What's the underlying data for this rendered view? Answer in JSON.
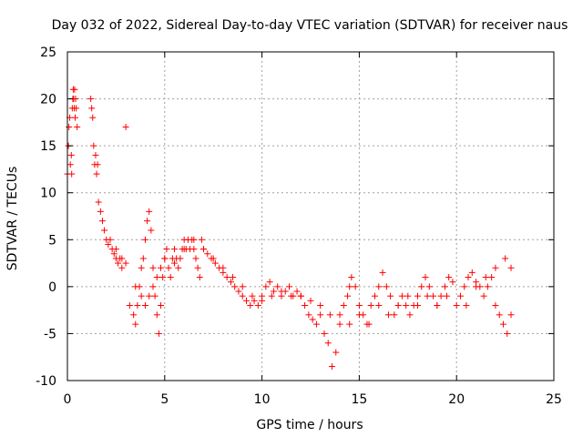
{
  "chart_data": {
    "type": "scatter",
    "title": "Day 032 of 2022, Sidereal Day-to-day VTEC variation (SDTVAR) for receiver naus",
    "xlabel": "GPS time / hours",
    "ylabel": "SDTVAR / TECUs",
    "xlim": [
      0,
      25
    ],
    "ylim": [
      -10,
      25
    ],
    "xticks": [
      0,
      5,
      10,
      15,
      20,
      25
    ],
    "yticks": [
      -10,
      -5,
      0,
      5,
      10,
      15,
      20,
      25
    ],
    "xtick_labels": [
      "0",
      "5",
      "10",
      "15",
      "20",
      "25"
    ],
    "ytick_labels": [
      "-10",
      "-5",
      "0",
      "5",
      "10",
      "15",
      "20",
      "25"
    ],
    "grid": true,
    "marker": "plus",
    "color": "#ff0000",
    "series": [
      {
        "name": "SDTVAR",
        "x": [
          0.0,
          0.05,
          0.08,
          0.12,
          0.15,
          0.2,
          0.22,
          0.25,
          0.28,
          0.3,
          0.32,
          0.35,
          0.37,
          0.4,
          0.42,
          0.45,
          0.5,
          1.2,
          1.25,
          1.3,
          1.35,
          1.4,
          1.45,
          1.5,
          1.55,
          1.6,
          1.7,
          1.8,
          1.9,
          2.0,
          2.1,
          2.2,
          2.3,
          2.4,
          2.5,
          2.6,
          2.7,
          2.8,
          3.0,
          3.2,
          3.4,
          3.5,
          3.6,
          3.7,
          3.8,
          3.9,
          4.0,
          4.1,
          4.2,
          4.3,
          4.4,
          4.5,
          4.6,
          4.7,
          4.8,
          4.9,
          5.0,
          5.1,
          5.2,
          5.3,
          5.4,
          5.5,
          5.6,
          5.7,
          5.8,
          5.9,
          6.0,
          6.1,
          6.2,
          6.3,
          6.4,
          6.5,
          6.6,
          6.7,
          6.8,
          6.9,
          7.0,
          7.2,
          7.4,
          7.6,
          7.8,
          8.0,
          8.2,
          8.4,
          8.6,
          8.8,
          9.0,
          9.2,
          9.4,
          9.6,
          9.8,
          10.0,
          10.2,
          10.4,
          10.6,
          10.8,
          11.0,
          11.2,
          11.4,
          11.6,
          11.8,
          12.0,
          12.2,
          12.4,
          12.6,
          12.8,
          13.0,
          13.2,
          13.4,
          13.6,
          13.8,
          14.0,
          14.2,
          14.4,
          14.5,
          14.6,
          14.8,
          15.0,
          15.2,
          15.4,
          15.6,
          15.8,
          16.0,
          16.2,
          16.4,
          16.6,
          16.8,
          17.0,
          17.2,
          17.4,
          17.6,
          17.8,
          18.0,
          18.2,
          18.4,
          18.6,
          18.8,
          19.0,
          19.2,
          19.4,
          19.6,
          19.8,
          20.2,
          20.4,
          20.6,
          20.8,
          21.0,
          21.2,
          21.4,
          21.6,
          21.8,
          22.0,
          22.2,
          22.4,
          22.6,
          22.8,
          2.5,
          2.8,
          3.0,
          3.5,
          3.8,
          4.0,
          4.2,
          4.4,
          4.6,
          4.8,
          5.0,
          5.5,
          6.0,
          6.5,
          7.0,
          7.5,
          8.0,
          8.5,
          9.0,
          9.5,
          10.0,
          10.5,
          11.0,
          11.5,
          12.0,
          12.5,
          13.0,
          13.5,
          14.0,
          14.5,
          15.0,
          15.5,
          16.0,
          16.5,
          17.0,
          17.5,
          18.0,
          18.5,
          19.0,
          19.5,
          20.0,
          20.5,
          21.0,
          21.5,
          22.0,
          22.5,
          22.8
        ],
        "y": [
          12,
          15,
          17,
          18,
          13,
          14,
          12,
          19,
          20,
          21,
          20,
          19,
          21,
          18,
          20,
          19,
          17,
          20,
          19,
          18,
          15,
          13,
          14,
          12,
          13,
          9,
          8,
          7,
          6,
          5,
          4.5,
          5,
          4,
          3.5,
          3,
          2.5,
          3,
          2,
          17,
          -2,
          -3,
          -4,
          -2,
          0,
          2,
          3,
          5,
          7,
          8,
          6,
          2,
          -1,
          -3,
          -5,
          -2,
          1,
          3,
          4,
          2,
          1,
          3,
          4,
          3,
          2,
          3,
          4,
          5,
          4,
          5,
          4,
          5,
          4,
          3,
          2,
          1,
          5,
          4,
          3.5,
          3,
          2.5,
          2,
          1.5,
          1,
          0.5,
          0,
          -0.5,
          -1,
          -1.5,
          -2,
          -1.5,
          -2,
          -1,
          0,
          0.5,
          -0.5,
          0,
          -1,
          -0.5,
          0,
          -1,
          -0.5,
          -1,
          -2,
          -3,
          -3.5,
          -4,
          -3,
          -5,
          -6,
          -8.5,
          -7,
          -4,
          -2,
          -1,
          0,
          1,
          0,
          -2,
          -3,
          -4,
          -2,
          -1,
          0,
          1.5,
          0,
          -1,
          -3,
          -2,
          -1,
          -2,
          -3,
          -2,
          -1,
          0,
          1,
          0,
          -1,
          -2,
          -1,
          0,
          1,
          0.5,
          -1,
          0,
          1,
          1.5,
          0.5,
          0,
          -1,
          0,
          1,
          -2,
          -3,
          -4,
          -5,
          -3,
          4,
          3,
          2.5,
          0,
          -1,
          -2,
          -1,
          0,
          1,
          2,
          3,
          2.5,
          4,
          5,
          4,
          3,
          2,
          1,
          0,
          -1,
          -1.5,
          -1,
          -0.5,
          -1,
          -1,
          -1.5,
          -2,
          -3,
          -3,
          -4,
          -3,
          -4,
          -2,
          -3,
          -2,
          -1,
          -2,
          -1,
          -2,
          -1,
          -2,
          -2,
          0,
          1,
          2,
          3,
          2
        ]
      }
    ]
  }
}
